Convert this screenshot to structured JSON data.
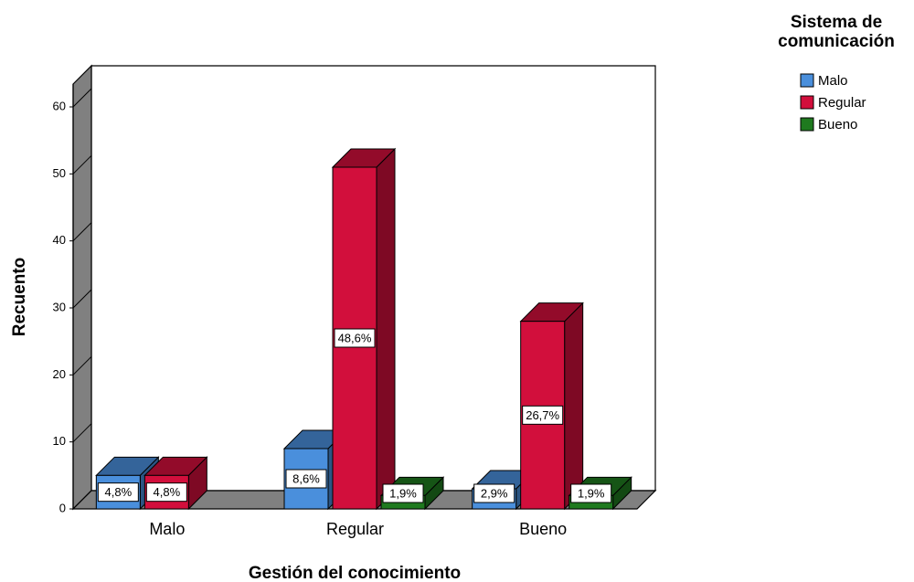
{
  "chart_data": {
    "type": "bar3d",
    "y_label": "Recuento",
    "x_label": "Gestión del conocimiento",
    "legend_title": "Sistema de comunicación",
    "categories": [
      "Malo",
      "Regular",
      "Bueno"
    ],
    "series": [
      {
        "name": "Malo",
        "color": "#4a8fdc",
        "values": [
          5,
          9,
          3
        ],
        "value_labels": [
          "4,8%",
          "8,6%",
          "2,9%"
        ]
      },
      {
        "name": "Regular",
        "color": "#d20f3c",
        "values": [
          5,
          51,
          28
        ],
        "value_labels": [
          "4,8%",
          "48,6%",
          "26,7%"
        ]
      },
      {
        "name": "Bueno",
        "color": "#1f7a1f",
        "values": [
          0,
          2,
          2
        ],
        "value_labels": [
          null,
          "1,9%",
          "1,9%"
        ]
      }
    ],
    "ylim": [
      0,
      60
    ],
    "yticks": [
      0,
      10,
      20,
      30,
      40,
      50,
      60
    ],
    "grid": true,
    "legend": "right"
  }
}
